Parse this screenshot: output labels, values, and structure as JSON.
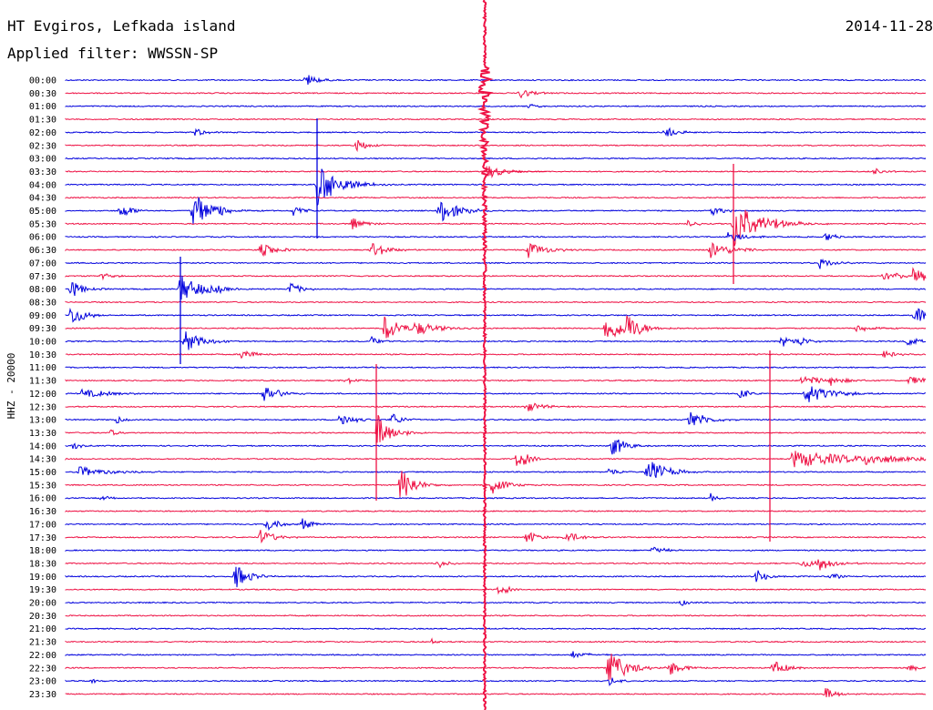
{
  "header": {
    "station": "HT Evgiros, Lefkada island",
    "date": "2014-11-28",
    "filter": "Applied filter: WWSSN-SP"
  },
  "chart_data": {
    "type": "line",
    "title": "HT Evgiros, Lefkada island",
    "ylabel": "HHZ - 20000",
    "row_labels": [
      "00:00",
      "00:30",
      "01:00",
      "01:30",
      "02:00",
      "02:30",
      "03:00",
      "03:30",
      "04:00",
      "04:30",
      "05:00",
      "05:30",
      "06:00",
      "06:30",
      "07:00",
      "07:30",
      "08:00",
      "08:30",
      "09:00",
      "09:30",
      "10:00",
      "10:30",
      "11:00",
      "11:30",
      "12:00",
      "12:30",
      "13:00",
      "13:30",
      "14:00",
      "14:30",
      "15:00",
      "15:30",
      "16:00",
      "16:30",
      "17:00",
      "17:30",
      "18:00",
      "18:30",
      "19:00",
      "19:30",
      "20:00",
      "20:30",
      "21:00",
      "21:30",
      "22:00",
      "22:30",
      "23:00",
      "23:30"
    ],
    "trace_colors": [
      "#0000dd",
      "#ee1144"
    ],
    "grid": false
  }
}
